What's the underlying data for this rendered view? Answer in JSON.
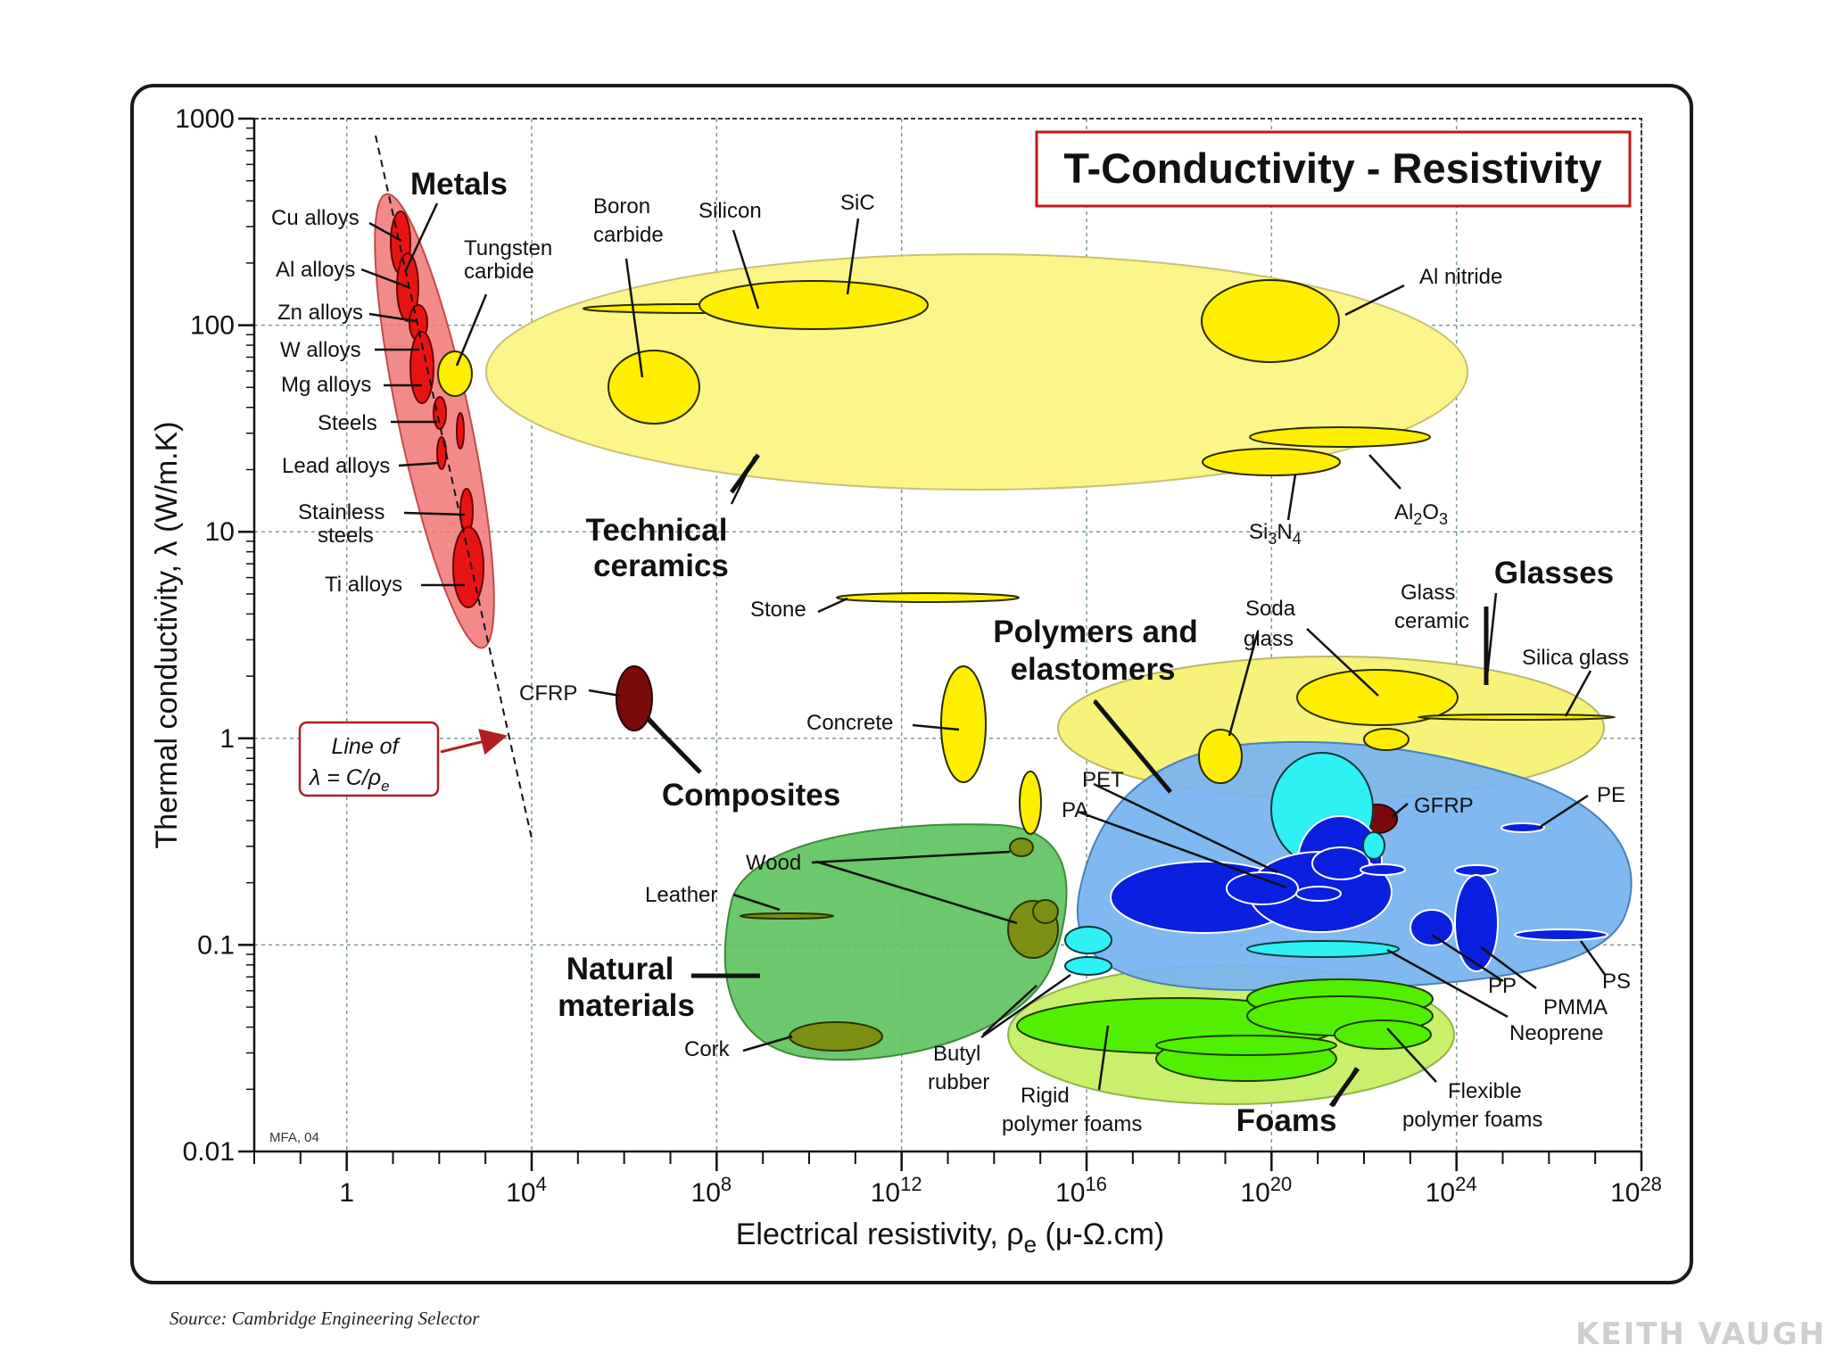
{
  "chart_data": {
    "type": "scatter",
    "title": "T-Conductivity - Resistivity",
    "xlabel_main": "Electrical resistivity, ρ",
    "xlabel_sub": "e",
    "xlabel_unit": " (μ-Ω.cm)",
    "ylabel": "Thermal conductivity, λ (W/m.K)",
    "x_scale": "log",
    "y_scale": "log",
    "xlim": [
      0.01,
      1e+28
    ],
    "ylim": [
      0.01,
      1000
    ],
    "x_ticks": [
      {
        "value": 1,
        "base": "1",
        "exp": ""
      },
      {
        "value": 10000.0,
        "base": "10",
        "exp": "4"
      },
      {
        "value": 100000000.0,
        "base": "10",
        "exp": "8"
      },
      {
        "value": 1000000000000.0,
        "base": "10",
        "exp": "12"
      },
      {
        "value": 1e+16,
        "base": "10",
        "exp": "16"
      },
      {
        "value": 1e+20,
        "base": "10",
        "exp": "20"
      },
      {
        "value": 1e+24,
        "base": "10",
        "exp": "24"
      },
      {
        "value": 1e+28,
        "base": "10",
        "exp": "28"
      }
    ],
    "y_ticks": [
      {
        "value": 0.01,
        "label": "0.01"
      },
      {
        "value": 0.1,
        "label": "0.1"
      },
      {
        "value": 1,
        "label": "1"
      },
      {
        "value": 10,
        "label": "10"
      },
      {
        "value": 100,
        "label": "100"
      },
      {
        "value": 1000,
        "label": "1000"
      }
    ],
    "grid": true,
    "credit": "MFA, 04",
    "guide_line": {
      "label_line1": "Line of",
      "label_line2": "λ  =  C/ρ",
      "label_sub": "e"
    },
    "families": [
      {
        "name": "Metals",
        "color": "#f07575"
      },
      {
        "name": "Technical ceramics",
        "color": "#fbf58a"
      },
      {
        "name": "Composites",
        "color": "#6b0a0a"
      },
      {
        "name": "Natural materials",
        "color": "#5cc25c"
      },
      {
        "name": "Polymers and elastomers",
        "color": "#79b4f0"
      },
      {
        "name": "Glasses",
        "color": "#f6f27a"
      },
      {
        "name": "Foams",
        "color": "#c8f06a"
      }
    ],
    "material_labels": [
      "Cu alloys",
      "Al alloys",
      "Zn alloys",
      "W alloys",
      "Mg alloys",
      "Steels",
      "Lead alloys",
      "Stainless",
      "steels",
      "Ti alloys",
      "Tungsten",
      "carbide",
      "Boron",
      "carbide",
      "Silicon",
      "SiC",
      "Al nitride",
      "Stone",
      "CFRP",
      "Concrete",
      "Wood",
      "Leather",
      "Cork",
      "Butyl",
      "rubber",
      "Rigid",
      "polymer foams",
      "Flexible",
      "polymer foams",
      "Soda",
      "glass",
      "Glass",
      "ceramic",
      "Silica glass",
      "PET",
      "PA",
      "GFRP",
      "PE",
      "PP",
      "PMMA",
      "Neoprene",
      "PS"
    ],
    "compound_labels": {
      "al2o3": {
        "a": "Al",
        "b": "2",
        "c": "O",
        "d": "3"
      },
      "si3n4": {
        "a": "Si",
        "b": "3",
        "c": "N",
        "d": "4"
      }
    }
  },
  "footer": {
    "source": "Source: Cambridge Engineering Selector",
    "watermark": "KEITH VAUGH"
  }
}
